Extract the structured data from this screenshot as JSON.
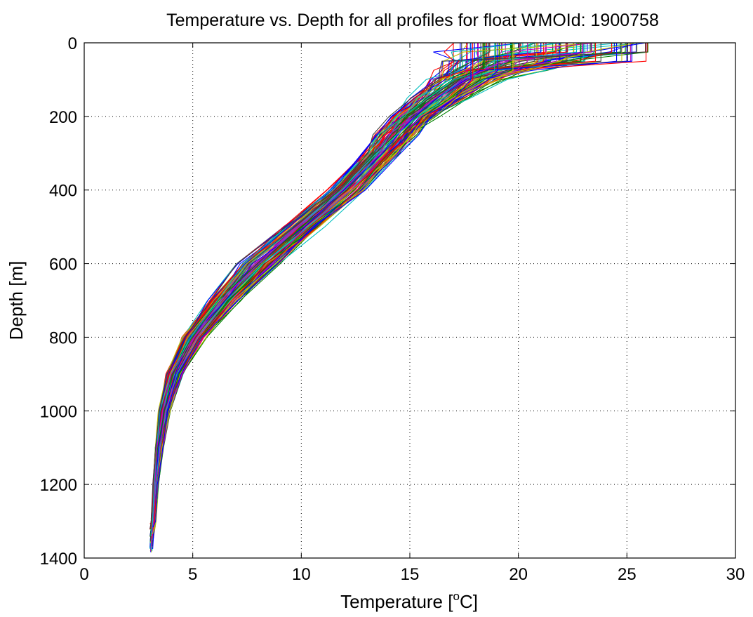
{
  "chart_data": {
    "type": "line",
    "title": "Temperature vs. Depth for all profiles for float WMOId: 1900758",
    "xlabel_prefix": "Temperature [",
    "xlabel_sup": "o",
    "xlabel_suffix": "C]",
    "ylabel": "Depth [m]",
    "xlim": [
      0,
      30
    ],
    "ylim": [
      0,
      1400
    ],
    "y_reversed": true,
    "xticks": [
      0,
      5,
      10,
      15,
      20,
      25,
      30
    ],
    "yticks": [
      0,
      200,
      400,
      600,
      800,
      1000,
      1200,
      1400
    ],
    "grid": true,
    "grid_style": "dotted",
    "legend": "none",
    "series_count": 120,
    "depth_levels": [
      0,
      25,
      50,
      75,
      100,
      150,
      200,
      250,
      300,
      400,
      500,
      600,
      700,
      800,
      900,
      1000,
      1100,
      1200,
      1300,
      1385
    ],
    "mean_profile_temperature": [
      21.2,
      21.0,
      20.0,
      18.8,
      17.6,
      16.4,
      15.2,
      14.4,
      13.7,
      12.1,
      10.1,
      8.1,
      6.5,
      5.1,
      4.2,
      3.7,
      3.45,
      3.3,
      3.2,
      3.1
    ],
    "profile_temperature_spread": [
      4.5,
      4.3,
      3.2,
      2.2,
      1.6,
      1.2,
      1.0,
      0.9,
      0.8,
      0.8,
      0.85,
      0.9,
      0.7,
      0.5,
      0.35,
      0.25,
      0.18,
      0.12,
      0.1,
      0.08
    ],
    "colors": [
      "#0000ff",
      "#008000",
      "#ff0000",
      "#00bfbf",
      "#bf00bf",
      "#bfbf00",
      "#404040"
    ]
  }
}
